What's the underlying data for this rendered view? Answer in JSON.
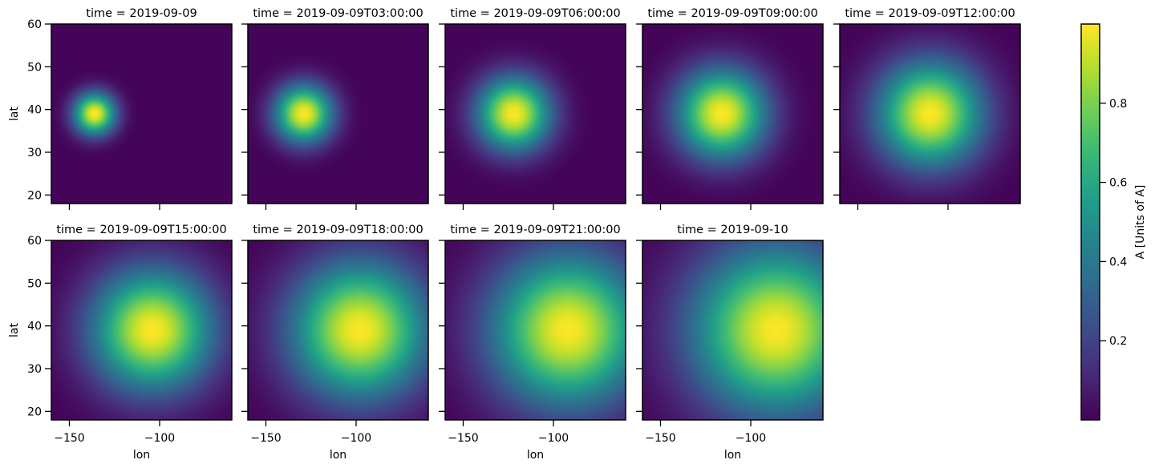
{
  "chart_data": {
    "type": "heatmap",
    "variable": "A",
    "colorbar_label": "A [Units of A]",
    "colormap": "viridis",
    "value_range": [
      0.0,
      1.0
    ],
    "colorbar_ticks": [
      0.2,
      0.4,
      0.6,
      0.8
    ],
    "xlabel": "lon",
    "ylabel": "lat",
    "xlim": [
      -160,
      -60
    ],
    "ylim": [
      18,
      60
    ],
    "xticks": [
      -150,
      -100
    ],
    "yticks": [
      20,
      30,
      40,
      50,
      60
    ],
    "grid": false,
    "panels": [
      {
        "title": "time = 2019-09-09",
        "peak_lon": -136,
        "peak_lat": 39,
        "spread_deg": 8
      },
      {
        "title": "time = 2019-09-09T03:00:00",
        "peak_lon": -129,
        "peak_lat": 39,
        "spread_deg": 11
      },
      {
        "title": "time = 2019-09-09T06:00:00",
        "peak_lon": -122,
        "peak_lat": 39,
        "spread_deg": 14
      },
      {
        "title": "time = 2019-09-09T09:00:00",
        "peak_lon": -116,
        "peak_lat": 39,
        "spread_deg": 17
      },
      {
        "title": "time = 2019-09-09T12:00:00",
        "peak_lon": -110,
        "peak_lat": 39,
        "spread_deg": 20
      },
      {
        "title": "time = 2019-09-09T15:00:00",
        "peak_lon": -104,
        "peak_lat": 39,
        "spread_deg": 23
      },
      {
        "title": "time = 2019-09-09T18:00:00",
        "peak_lon": -98,
        "peak_lat": 39,
        "spread_deg": 26
      },
      {
        "title": "time = 2019-09-09T21:00:00",
        "peak_lon": -92,
        "peak_lat": 39,
        "spread_deg": 29
      },
      {
        "title": "time = 2019-09-10",
        "peak_lon": -86,
        "peak_lat": 39,
        "spread_deg": 32
      }
    ]
  }
}
